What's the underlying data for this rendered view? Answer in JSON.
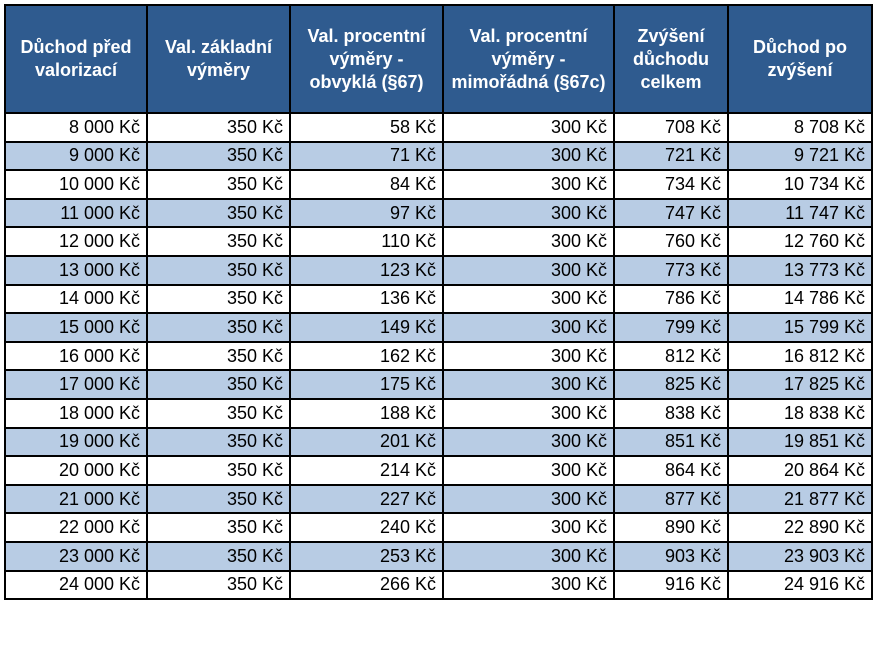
{
  "table": {
    "headers": [
      "Důchod před valorizací",
      "Val. základní výměry",
      "Val. procentní výměry - obvyklá (§67)",
      "Val. procentní výměry - mimořádná (§67c)",
      "Zvýšení důchodu celkem",
      "Důchod po zvýšení"
    ],
    "rows": [
      [
        "8 000 Kč",
        "350 Kč",
        "58 Kč",
        "300 Kč",
        "708 Kč",
        "8 708 Kč"
      ],
      [
        "9 000 Kč",
        "350 Kč",
        "71 Kč",
        "300 Kč",
        "721 Kč",
        "9 721 Kč"
      ],
      [
        "10 000 Kč",
        "350 Kč",
        "84 Kč",
        "300 Kč",
        "734 Kč",
        "10 734 Kč"
      ],
      [
        "11 000 Kč",
        "350 Kč",
        "97 Kč",
        "300 Kč",
        "747 Kč",
        "11 747 Kč"
      ],
      [
        "12 000 Kč",
        "350 Kč",
        "110 Kč",
        "300 Kč",
        "760 Kč",
        "12 760 Kč"
      ],
      [
        "13 000 Kč",
        "350 Kč",
        "123 Kč",
        "300 Kč",
        "773 Kč",
        "13 773 Kč"
      ],
      [
        "14 000 Kč",
        "350 Kč",
        "136 Kč",
        "300 Kč",
        "786 Kč",
        "14 786 Kč"
      ],
      [
        "15 000 Kč",
        "350 Kč",
        "149 Kč",
        "300 Kč",
        "799 Kč",
        "15 799 Kč"
      ],
      [
        "16 000 Kč",
        "350 Kč",
        "162 Kč",
        "300 Kč",
        "812 Kč",
        "16 812 Kč"
      ],
      [
        "17 000 Kč",
        "350 Kč",
        "175 Kč",
        "300 Kč",
        "825 Kč",
        "17 825 Kč"
      ],
      [
        "18 000 Kč",
        "350 Kč",
        "188 Kč",
        "300 Kč",
        "838 Kč",
        "18 838 Kč"
      ],
      [
        "19 000 Kč",
        "350 Kč",
        "201 Kč",
        "300 Kč",
        "851 Kč",
        "19 851 Kč"
      ],
      [
        "20 000 Kč",
        "350 Kč",
        "214 Kč",
        "300 Kč",
        "864 Kč",
        "20 864 Kč"
      ],
      [
        "21 000 Kč",
        "350 Kč",
        "227 Kč",
        "300 Kč",
        "877 Kč",
        "21 877 Kč"
      ],
      [
        "22 000 Kč",
        "350 Kč",
        "240 Kč",
        "300 Kč",
        "890 Kč",
        "22 890 Kč"
      ],
      [
        "23 000 Kč",
        "350 Kč",
        "253 Kč",
        "300 Kč",
        "903 Kč",
        "23 903 Kč"
      ],
      [
        "24 000 Kč",
        "350 Kč",
        "266 Kč",
        "300 Kč",
        "916 Kč",
        "24 916 Kč"
      ]
    ]
  }
}
